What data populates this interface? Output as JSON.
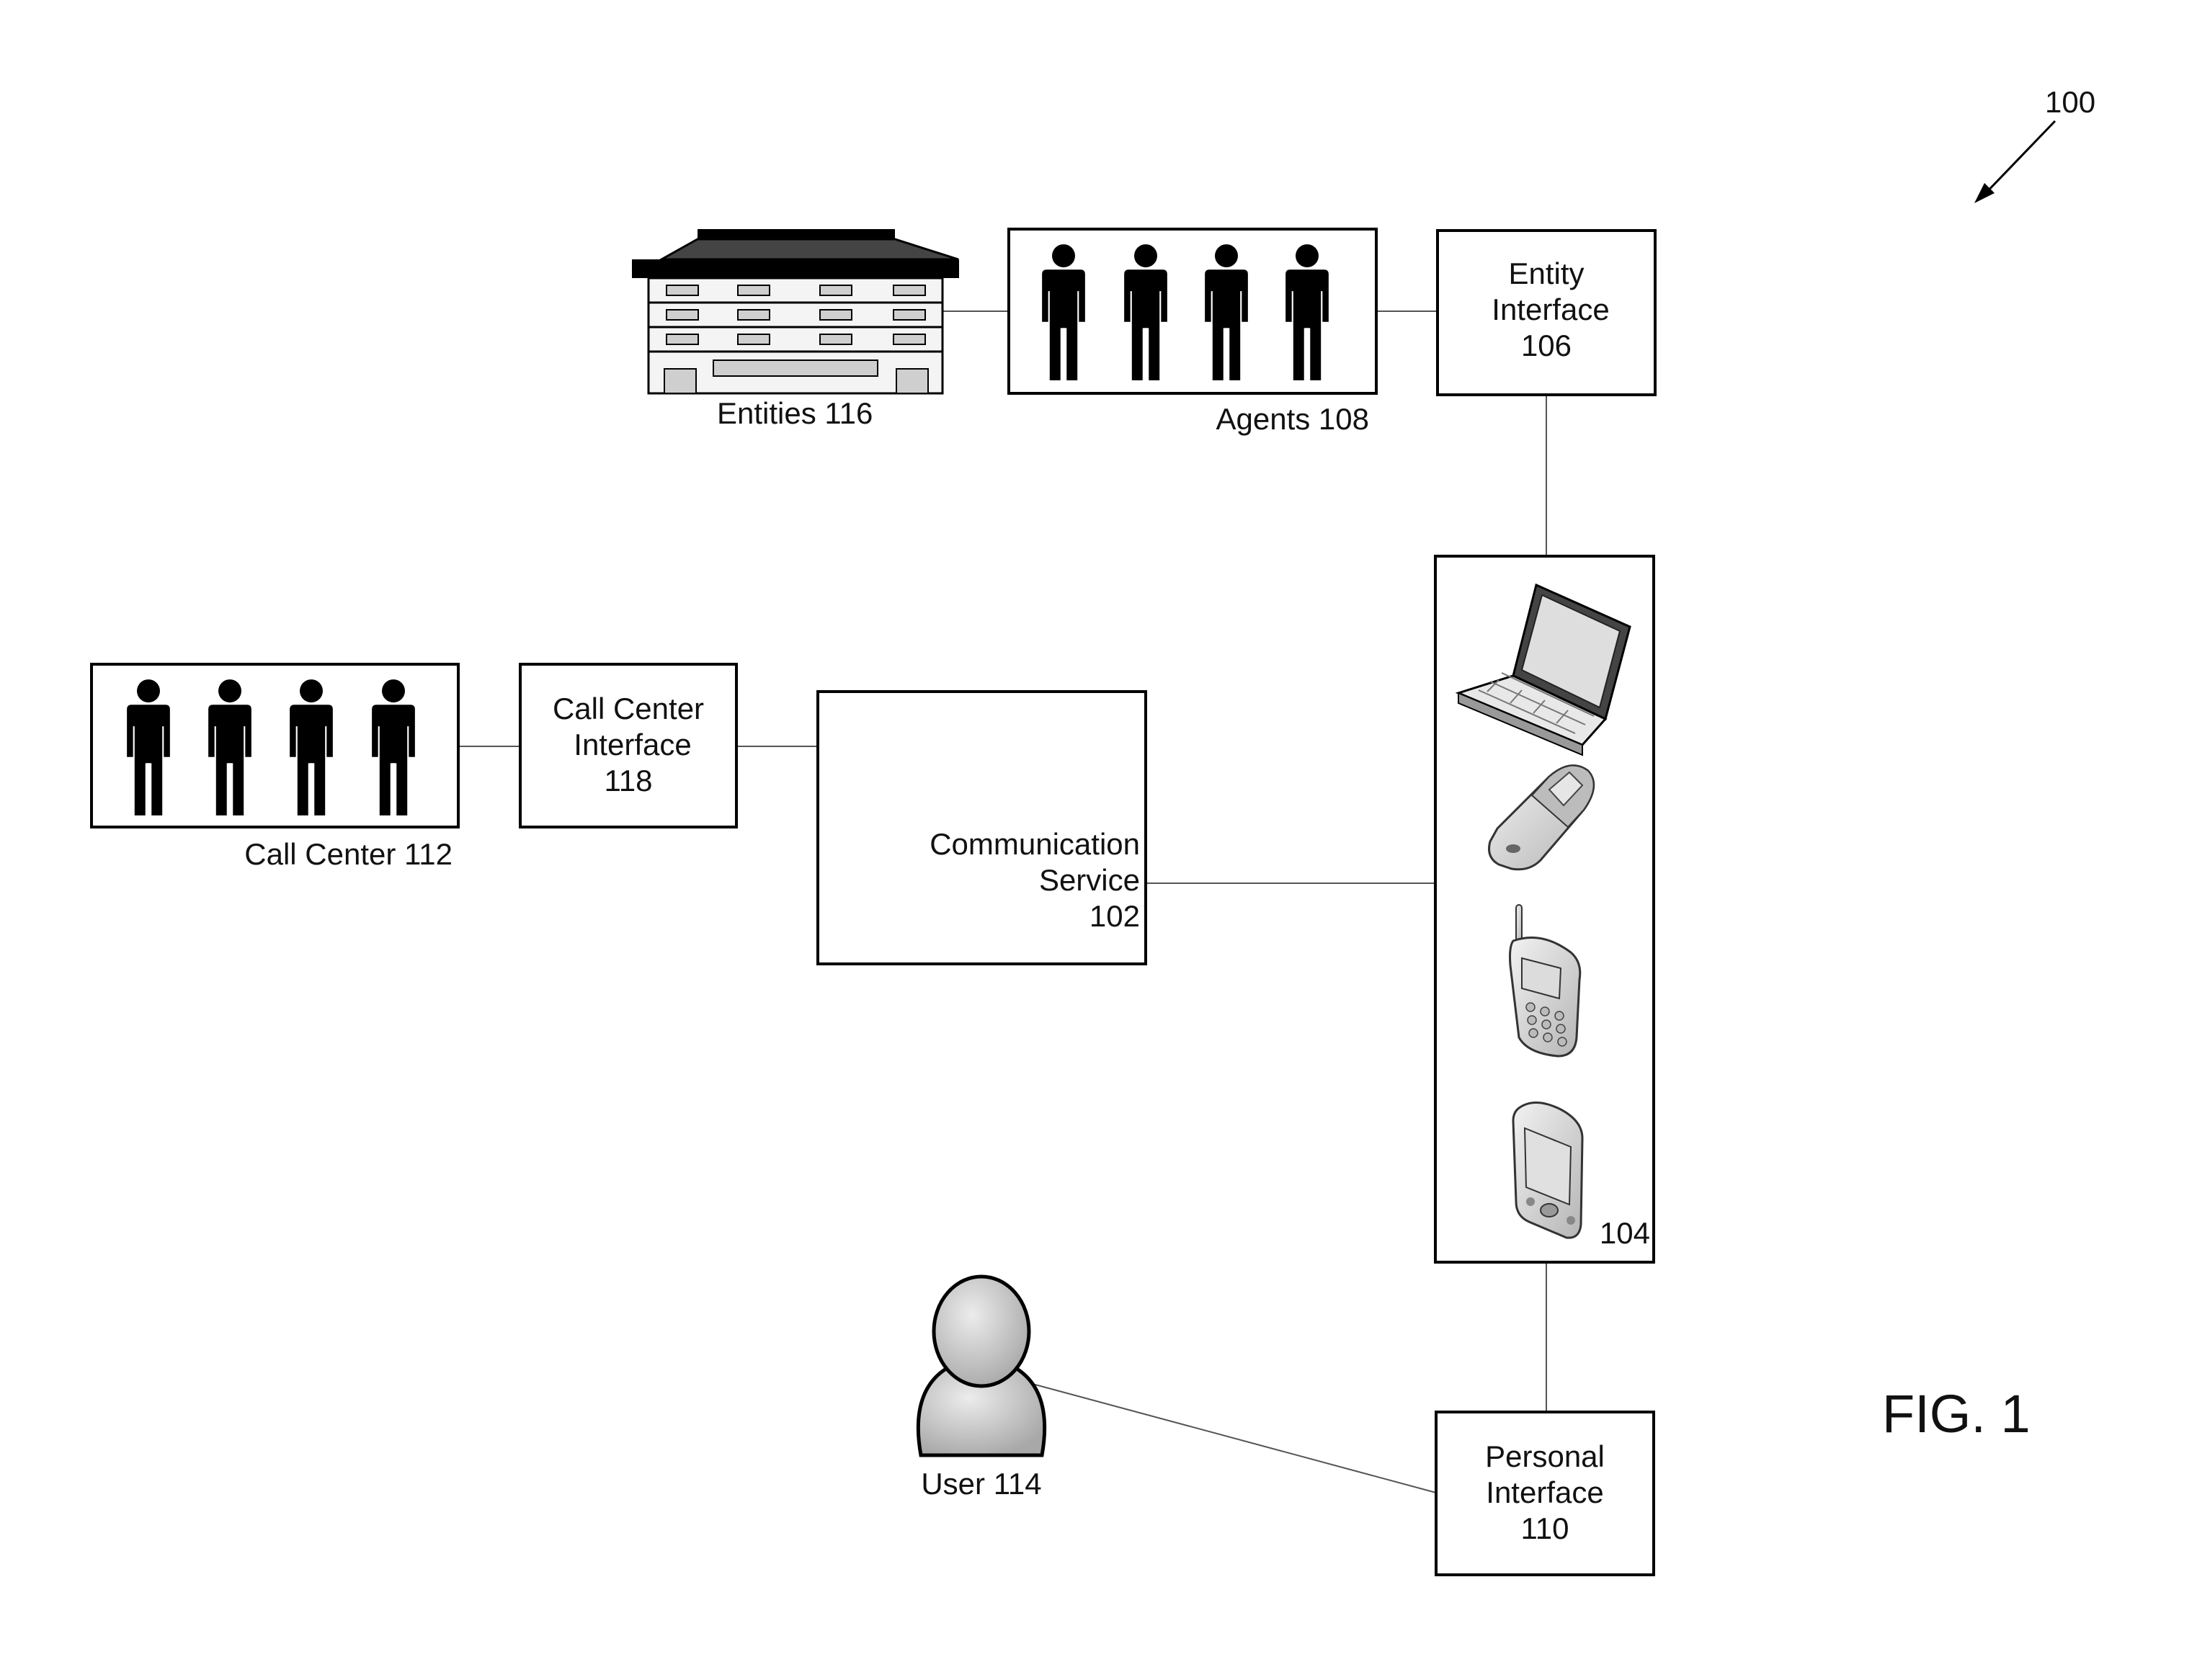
{
  "diagram": {
    "ref_number": "100",
    "fig_label": "FIG. 1",
    "entities": {
      "label": "Entities 116"
    },
    "agents": {
      "label": "Agents 108"
    },
    "entity_interface": {
      "line1": "Entity",
      "line2": "Interface",
      "line3": "106"
    },
    "call_center": {
      "label": "Call Center 112"
    },
    "call_center_interface": {
      "line1": "Call Center",
      "line2": "Interface",
      "line3": "118"
    },
    "communication_service": {
      "line1": "Communication",
      "line2": "Service",
      "line3": "102"
    },
    "devices": {
      "label": "104",
      "icons": [
        "laptop-icon",
        "flip-phone-icon",
        "cell-phone-icon",
        "pda-icon"
      ]
    },
    "user": {
      "label": "User 114"
    },
    "personal_interface": {
      "line1": "Personal",
      "line2": "Interface",
      "line3": "110"
    }
  }
}
